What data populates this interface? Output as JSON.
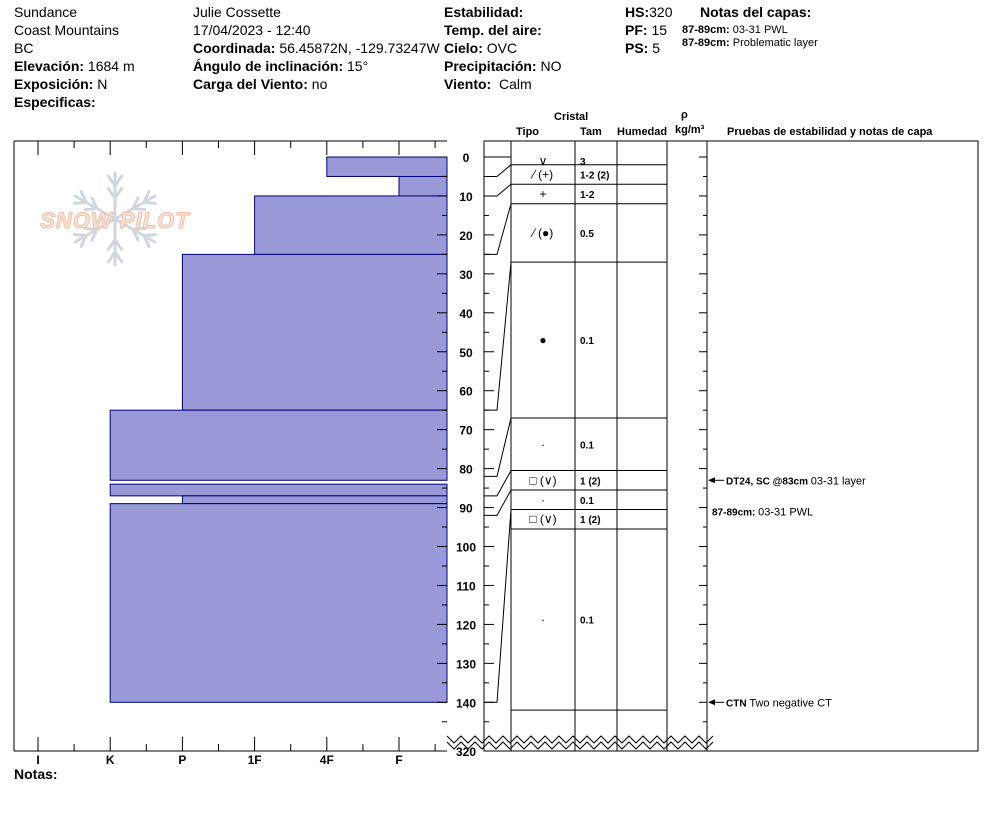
{
  "header": {
    "location": "Sundance",
    "range": "Coast Mountains",
    "region": "BC",
    "elevation_label": "Elevación:",
    "elevation_value": "1684 m",
    "aspect_label": "Exposición:",
    "aspect_value": "N",
    "specifics_label": "Especificas:",
    "observer": "Julie Cossette",
    "datetime": "17/04/2023 - 12:40",
    "coord_label": "Coordinada:",
    "coord_value": "56.45872N, -129.73247W",
    "slope_label": "Ángulo de inclinación:",
    "slope_value": "15°",
    "wind_load_label": "Carga del Viento:",
    "wind_load_value": "no",
    "stability_label": "Estabilidad:",
    "air_temp_label": "Temp. del aire:",
    "sky_label": "Cielo:",
    "sky_value": "OVC",
    "precip_label": "Precipitación:",
    "precip_value": "NO",
    "wind_label": "Viento:",
    "wind_value": "Calm",
    "hs_label": "HS:",
    "hs_value": "320",
    "pf_label": "PF:",
    "pf_value": "15",
    "ps_label": "PS:",
    "ps_value": "5",
    "layer_notes_title": "Notas del capas:",
    "layer_notes": [
      {
        "depth": "87-89cm:",
        "text": "03-31 PWL"
      },
      {
        "depth": "87-89cm:",
        "text": "Problematic layer"
      }
    ]
  },
  "logo": {
    "text": "SNOW PILOT"
  },
  "columns": {
    "crystal": "Cristal",
    "type": "Tipo",
    "size": "Tam",
    "humidity": "Humedad",
    "rho": "ρ",
    "density_unit": "kg/m³",
    "tests": "Pruebas de estabilidad y notas de capa"
  },
  "notes_label": "Notas:",
  "chart_data": {
    "type": "bar",
    "orientation": "horizontal",
    "xlabel": "",
    "ylabel": "",
    "hardness_scale": [
      "I",
      "K",
      "P",
      "1F",
      "4F",
      "F"
    ],
    "hardness_values": {
      "F": 1,
      "4F": 2,
      "1F": 3,
      "P": 4,
      "K": 5,
      "I": 6
    },
    "depth_ticks": [
      "0",
      "10",
      "20",
      "30",
      "40",
      "50",
      "60",
      "70",
      "80",
      "90",
      "100",
      "110",
      "120",
      "130",
      "140"
    ],
    "depth_range": [
      0,
      146
    ],
    "bottom_label": "320",
    "layers": [
      {
        "top": 0,
        "bottom": 5,
        "hardness": "4F"
      },
      {
        "top": 5,
        "bottom": 10,
        "hardness": "F"
      },
      {
        "top": 10,
        "bottom": 25,
        "hardness": "1F"
      },
      {
        "top": 25,
        "bottom": 65,
        "hardness": "P"
      },
      {
        "top": 65,
        "bottom": 83,
        "hardness": "K"
      },
      {
        "top": 84,
        "bottom": 87,
        "hardness": "K"
      },
      {
        "top": 87,
        "bottom": 89,
        "hardness": "P"
      },
      {
        "top": 89,
        "bottom": 140,
        "hardness": "K"
      }
    ],
    "boundaries": [
      0,
      5,
      10,
      25,
      65,
      82,
      87,
      92,
      140
    ],
    "crystal_rows": [
      {
        "type": "∨",
        "size": "3"
      },
      {
        "type": "⁄ (+)",
        "size": "1-2 (2)"
      },
      {
        "type": "+",
        "size": "1-2"
      },
      {
        "type": "⁄ (●)",
        "size": "0.5"
      },
      {
        "type": "●",
        "size": "0.1"
      },
      {
        "type": "·",
        "size": "0.1"
      },
      {
        "type": "□ (∨)",
        "size": "1 (2)"
      },
      {
        "type": "·",
        "size": "0.1"
      },
      {
        "type": "□ (∨)",
        "size": "1 (2)"
      },
      {
        "type": "·",
        "size": "0.1"
      }
    ],
    "row_bounds": [
      [
        0,
        2
      ],
      [
        2,
        7
      ],
      [
        7,
        12
      ],
      [
        12,
        27
      ],
      [
        27,
        67
      ],
      [
        67,
        80.5
      ],
      [
        80.5,
        85.5
      ],
      [
        85.5,
        90.5
      ],
      [
        90.5,
        95.5
      ],
      [
        95.5,
        142
      ]
    ],
    "stability_notes": [
      {
        "depth": 83,
        "code": "DT24, SC @83cm",
        "text": "03-31 layer",
        "arrow": true
      },
      {
        "depth": 91,
        "code": "87-89cm:",
        "text": "03-31 PWL",
        "arrow": false
      },
      {
        "depth": 140,
        "code": "CTN",
        "text": "Two negative CT",
        "arrow": true
      }
    ],
    "colors": {
      "bar": "#9999d8",
      "bar_stroke": "#00007a"
    }
  }
}
